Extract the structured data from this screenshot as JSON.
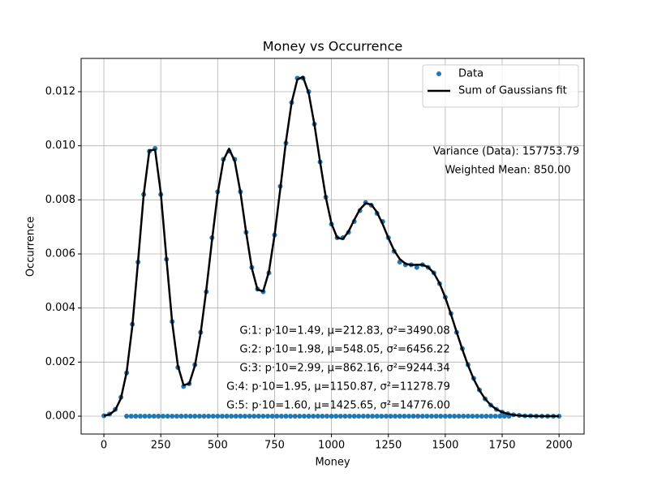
{
  "chart_data": {
    "type": "line",
    "title": "Money vs Occurrence",
    "x_label": "Money",
    "y_label": "Occurrence",
    "xlim": [
      -100,
      2110
    ],
    "ylim": [
      -0.00066,
      0.01323
    ],
    "xticks": [
      0,
      250,
      500,
      750,
      1000,
      1250,
      1500,
      1750,
      2000
    ],
    "yticks": [
      {
        "value": 0,
        "label": "0.000"
      },
      {
        "value": 0.002,
        "label": "0.002"
      },
      {
        "value": 0.004,
        "label": "0.004"
      },
      {
        "value": 0.006,
        "label": "0.006"
      },
      {
        "value": 0.008,
        "label": "0.008"
      },
      {
        "value": 0.01,
        "label": "0.010"
      },
      {
        "value": 0.012,
        "label": "0.012"
      }
    ],
    "grid": true,
    "legend": "upper right",
    "series": [
      {
        "name": "Data",
        "color": "#1f77b4",
        "mode": "markers",
        "x": [
          0,
          25,
          50,
          75,
          100,
          125,
          150,
          175,
          200,
          225,
          250,
          275,
          300,
          325,
          350,
          375,
          400,
          425,
          450,
          475,
          500,
          525,
          550,
          575,
          600,
          625,
          650,
          675,
          700,
          725,
          750,
          775,
          800,
          825,
          850,
          875,
          900,
          925,
          950,
          975,
          1000,
          1025,
          1050,
          1075,
          1100,
          1125,
          1150,
          1175,
          1200,
          1225,
          1250,
          1275,
          1300,
          1325,
          1350,
          1375,
          1400,
          1425,
          1450,
          1475,
          1500,
          1525,
          1550,
          1575,
          1600,
          1625,
          1650,
          1675,
          1700,
          1725,
          1750,
          1775,
          1800,
          1825,
          1850,
          1875,
          1900,
          1925,
          1950,
          1975,
          2000,
          100,
          120,
          140,
          160,
          180,
          200,
          220,
          240,
          260,
          280,
          300,
          320,
          340,
          360,
          380,
          400,
          420,
          440,
          460,
          480,
          500,
          520,
          540,
          560,
          580,
          600,
          620,
          640,
          660,
          680,
          700,
          720,
          740,
          760,
          780,
          800,
          820,
          840,
          860,
          880,
          900,
          920,
          940,
          960,
          980,
          1000,
          1020,
          1040,
          1060,
          1080,
          1100,
          1120,
          1140,
          1160,
          1180,
          1200,
          1220,
          1240,
          1260,
          1280,
          1300,
          1320,
          1340,
          1360,
          1380,
          1400,
          1420,
          1440,
          1460,
          1480,
          1500,
          1520,
          1540,
          1560,
          1580,
          1600,
          1620,
          1640,
          1660,
          1680,
          1700,
          1720,
          1740,
          1760,
          1780
        ],
        "values": [
          1.5e-05,
          8e-05,
          0.00025,
          0.0007,
          0.0016,
          0.0034,
          0.0057,
          0.0082,
          0.0098,
          0.0099,
          0.0082,
          0.0058,
          0.0035,
          0.0018,
          0.0011,
          0.0012,
          0.0019,
          0.0031,
          0.0046,
          0.0066,
          0.0083,
          0.0095,
          0.0098,
          0.0095,
          0.0083,
          0.0068,
          0.0055,
          0.0047,
          0.0046,
          0.0053,
          0.0067,
          0.0085,
          0.0101,
          0.0116,
          0.0125,
          0.0125,
          0.012,
          0.0108,
          0.0094,
          0.0081,
          0.0071,
          0.0066,
          0.0066,
          0.0068,
          0.0072,
          0.0076,
          0.0079,
          0.0078,
          0.0075,
          0.0072,
          0.0066,
          0.0061,
          0.0057,
          0.0056,
          0.0056,
          0.0055,
          0.0056,
          0.0055,
          0.0053,
          0.0049,
          0.0044,
          0.0038,
          0.0031,
          0.0025,
          0.0019,
          0.0014,
          0.00097,
          0.00064,
          0.00041,
          0.00025,
          0.00015,
          9e-05,
          5e-05,
          3e-05,
          1e-05,
          1e-05,
          0,
          0,
          0,
          0,
          0,
          0,
          0,
          0,
          0,
          0,
          0,
          0,
          0,
          0,
          0,
          0,
          0,
          0,
          0,
          0,
          0,
          0,
          0,
          0,
          0,
          0,
          0,
          0,
          0,
          0,
          0,
          0,
          0,
          0,
          0,
          0,
          0,
          0,
          0,
          0,
          0,
          0,
          0,
          0,
          0,
          0,
          0,
          0,
          0,
          0,
          0,
          0,
          0,
          0,
          0,
          0,
          0,
          0,
          0,
          0,
          0,
          0,
          0,
          0,
          0,
          0,
          0,
          0,
          0,
          0,
          0,
          0,
          0,
          0,
          0,
          0,
          0,
          0,
          0,
          0,
          0,
          0,
          0,
          0,
          0,
          0,
          0,
          0,
          0,
          0
        ]
      },
      {
        "name": "Sum of Gaussians fit",
        "color": "#000000",
        "mode": "line",
        "x": [
          0,
          25,
          50,
          75,
          100,
          125,
          150,
          175,
          200,
          225,
          250,
          275,
          300,
          325,
          350,
          375,
          400,
          425,
          450,
          475,
          500,
          525,
          550,
          575,
          600,
          625,
          650,
          675,
          700,
          725,
          750,
          775,
          800,
          825,
          850,
          875,
          900,
          925,
          950,
          975,
          1000,
          1025,
          1050,
          1075,
          1100,
          1125,
          1150,
          1175,
          1200,
          1225,
          1250,
          1275,
          1300,
          1325,
          1350,
          1375,
          1400,
          1425,
          1450,
          1475,
          1500,
          1525,
          1550,
          1575,
          1600,
          1625,
          1650,
          1675,
          1700,
          1725,
          1750,
          1775,
          1800,
          1825,
          1850,
          1875,
          1900,
          1925,
          1950,
          1975,
          2000
        ],
        "values": [
          1.5e-05,
          6.4e-05,
          0.000226,
          0.000663,
          0.001627,
          0.00333,
          0.005714,
          0.0082,
          0.00983,
          0.00985,
          0.00826,
          0.00582,
          0.00347,
          0.00187,
          0.00115,
          0.0012,
          0.00187,
          0.00306,
          0.00467,
          0.0065,
          0.00823,
          0.00946,
          0.00989,
          0.00943,
          0.00828,
          0.0068,
          0.00547,
          0.00468,
          0.00462,
          0.00534,
          0.0067,
          0.0084,
          0.01016,
          0.0116,
          0.01245,
          0.01255,
          0.01194,
          0.01079,
          0.0094,
          0.0081,
          0.00712,
          0.0066,
          0.00655,
          0.00683,
          0.00726,
          0.00765,
          0.00787,
          0.00783,
          0.00754,
          0.0071,
          0.00659,
          0.00613,
          0.00581,
          0.00564,
          0.00559,
          0.0056,
          0.0056,
          0.00551,
          0.00529,
          0.00491,
          0.00439,
          0.00377,
          0.00311,
          0.00247,
          0.00188,
          0.00137,
          0.00096,
          0.00064,
          0.00041,
          0.00025,
          0.00015,
          8.5e-05,
          4.6e-05,
          2.4e-05,
          1.2e-05,
          6e-06,
          2e-06,
          1e-06,
          0,
          0,
          0
        ]
      }
    ],
    "annotations": [
      "Variance (Data): 157753.79",
      "Weighted Mean: 850.00",
      "G:1: p·10=1.49, μ=212.83, σ²=3490.08",
      "G:2: p·10=1.98, μ=548.05, σ²=6456.22",
      "G:3: p·10=2.99, μ=862.16, σ²=9244.34",
      "G:4: p·10=1.95, μ=1150.87, σ²=11278.79",
      "G:5: p·10=1.60, μ=1425.65, σ²=14776.00"
    ]
  }
}
